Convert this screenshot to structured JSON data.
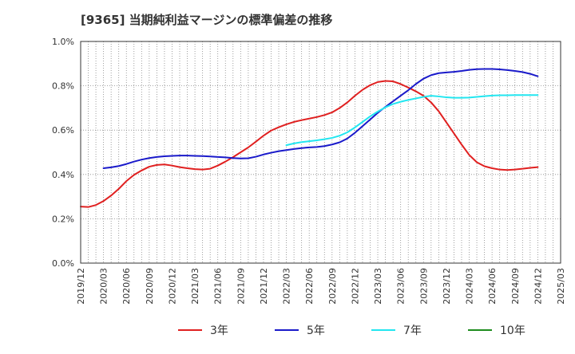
{
  "chart_data": {
    "type": "line",
    "title": "[9365]  当期純利益マージンの標準偏差の推移",
    "xlabel": "",
    "ylabel": "",
    "ylim": [
      0.0,
      1.0
    ],
    "y_ticks": [
      "0.0%",
      "0.2%",
      "0.4%",
      "0.6%",
      "0.8%",
      "1.0%"
    ],
    "y_tick_values": [
      0.0,
      0.2,
      0.4,
      0.6,
      0.8,
      1.0
    ],
    "x_ticks": [
      "2019/12",
      "2020/03",
      "2020/06",
      "2020/09",
      "2020/12",
      "2021/03",
      "2021/06",
      "2021/09",
      "2021/12",
      "2022/03",
      "2022/06",
      "2022/09",
      "2022/12",
      "2023/03",
      "2023/06",
      "2023/09",
      "2023/12",
      "2024/03",
      "2024/06",
      "2024/09",
      "2024/12",
      "2025/03"
    ],
    "x_range": [
      "2019/12",
      "2025/03"
    ],
    "grid": true,
    "legend_position": "bottom",
    "series": [
      {
        "name": "3年",
        "color": "#e02020",
        "x": [
          "2019/12",
          "2020/01",
          "2020/02",
          "2020/03",
          "2020/04",
          "2020/05",
          "2020/06",
          "2020/07",
          "2020/08",
          "2020/09",
          "2020/10",
          "2020/11",
          "2020/12",
          "2021/01",
          "2021/02",
          "2021/03",
          "2021/04",
          "2021/05",
          "2021/06",
          "2021/07",
          "2021/08",
          "2021/09",
          "2021/10",
          "2021/11",
          "2021/12",
          "2022/01",
          "2022/02",
          "2022/03",
          "2022/04",
          "2022/05",
          "2022/06",
          "2022/07",
          "2022/08",
          "2022/09",
          "2022/10",
          "2022/11",
          "2022/12",
          "2023/01",
          "2023/02",
          "2023/03",
          "2023/04",
          "2023/05",
          "2023/06",
          "2023/07",
          "2023/08",
          "2023/09",
          "2023/10",
          "2023/11",
          "2023/12",
          "2024/01",
          "2024/02",
          "2024/03",
          "2024/04",
          "2024/05",
          "2024/06",
          "2024/07",
          "2024/08",
          "2024/09",
          "2024/10",
          "2024/11",
          "2024/12"
        ],
        "values": [
          0.255,
          0.253,
          0.262,
          0.28,
          0.305,
          0.335,
          0.37,
          0.398,
          0.418,
          0.435,
          0.443,
          0.445,
          0.44,
          0.433,
          0.428,
          0.424,
          0.422,
          0.426,
          0.44,
          0.458,
          0.478,
          0.5,
          0.522,
          0.548,
          0.575,
          0.598,
          0.613,
          0.626,
          0.637,
          0.645,
          0.652,
          0.659,
          0.668,
          0.68,
          0.7,
          0.725,
          0.755,
          0.782,
          0.803,
          0.817,
          0.822,
          0.82,
          0.808,
          0.792,
          0.775,
          0.755,
          0.725,
          0.685,
          0.635,
          0.585,
          0.535,
          0.488,
          0.455,
          0.437,
          0.428,
          0.422,
          0.42,
          0.422,
          0.426,
          0.43,
          0.433
        ]
      },
      {
        "name": "5年",
        "color": "#1a1aca",
        "x": [
          "2020/03",
          "2020/04",
          "2020/05",
          "2020/06",
          "2020/07",
          "2020/08",
          "2020/09",
          "2020/10",
          "2020/11",
          "2020/12",
          "2021/01",
          "2021/02",
          "2021/03",
          "2021/04",
          "2021/05",
          "2021/06",
          "2021/07",
          "2021/08",
          "2021/09",
          "2021/10",
          "2021/11",
          "2021/12",
          "2022/01",
          "2022/02",
          "2022/03",
          "2022/04",
          "2022/05",
          "2022/06",
          "2022/07",
          "2022/08",
          "2022/09",
          "2022/10",
          "2022/11",
          "2022/12",
          "2023/01",
          "2023/02",
          "2023/03",
          "2023/04",
          "2023/05",
          "2023/06",
          "2023/07",
          "2023/08",
          "2023/09",
          "2023/10",
          "2023/11",
          "2023/12",
          "2024/01",
          "2024/02",
          "2024/03",
          "2024/04",
          "2024/05",
          "2024/06",
          "2024/07",
          "2024/08",
          "2024/09",
          "2024/10",
          "2024/11",
          "2024/12"
        ],
        "values": [
          0.428,
          0.432,
          0.438,
          0.447,
          0.458,
          0.467,
          0.474,
          0.479,
          0.482,
          0.484,
          0.485,
          0.485,
          0.484,
          0.483,
          0.481,
          0.479,
          0.477,
          0.474,
          0.472,
          0.473,
          0.48,
          0.49,
          0.498,
          0.505,
          0.51,
          0.515,
          0.519,
          0.522,
          0.524,
          0.528,
          0.535,
          0.545,
          0.562,
          0.588,
          0.618,
          0.648,
          0.678,
          0.705,
          0.73,
          0.755,
          0.78,
          0.808,
          0.832,
          0.848,
          0.857,
          0.86,
          0.863,
          0.867,
          0.872,
          0.875,
          0.876,
          0.876,
          0.874,
          0.871,
          0.867,
          0.862,
          0.854,
          0.843
        ]
      },
      {
        "name": "7年",
        "color": "#22e6f0",
        "x": [
          "2022/03",
          "2022/04",
          "2022/05",
          "2022/06",
          "2022/07",
          "2022/08",
          "2022/09",
          "2022/10",
          "2022/11",
          "2022/12",
          "2023/01",
          "2023/02",
          "2023/03",
          "2023/04",
          "2023/05",
          "2023/06",
          "2023/07",
          "2023/08",
          "2023/09",
          "2023/10",
          "2023/11",
          "2023/12",
          "2024/01",
          "2024/02",
          "2024/03",
          "2024/04",
          "2024/05",
          "2024/06",
          "2024/07",
          "2024/08",
          "2024/09",
          "2024/10",
          "2024/11",
          "2024/12"
        ],
        "values": [
          0.532,
          0.54,
          0.546,
          0.55,
          0.554,
          0.559,
          0.565,
          0.575,
          0.59,
          0.612,
          0.637,
          0.662,
          0.684,
          0.703,
          0.718,
          0.728,
          0.736,
          0.743,
          0.75,
          0.755,
          0.752,
          0.748,
          0.746,
          0.746,
          0.747,
          0.75,
          0.753,
          0.756,
          0.757,
          0.757,
          0.758,
          0.758,
          0.758,
          0.758
        ]
      },
      {
        "name": "10年",
        "color": "#1e8c1e",
        "x": [],
        "values": []
      }
    ]
  }
}
